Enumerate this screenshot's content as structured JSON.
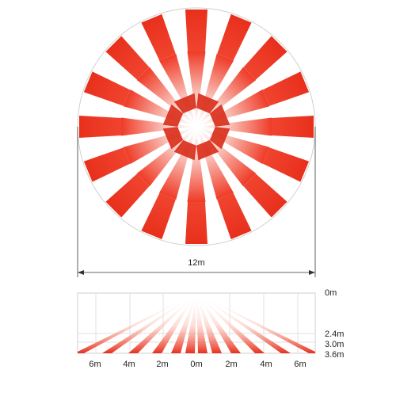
{
  "top_view": {
    "dimension_label": "12m"
  },
  "side_view": {
    "x_labels": [
      "6m",
      "4m",
      "2m",
      "0m",
      "2m",
      "4m",
      "6m"
    ],
    "height_labels": [
      "0m",
      "2.4m",
      "3.0m",
      "3.6m"
    ]
  }
}
